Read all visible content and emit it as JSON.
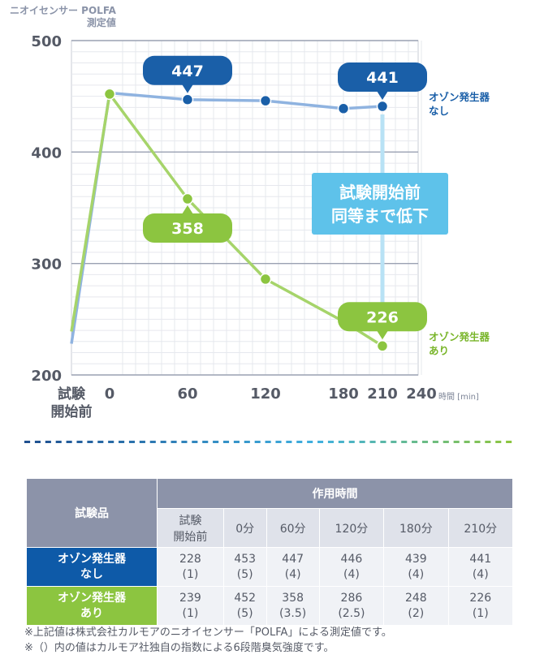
{
  "chart_data": {
    "type": "line",
    "ylabel": "ニオイセンサー POLFA",
    "ylabel_unit": "測定値",
    "xlabel": "時間",
    "xlabel_unit": "[min]",
    "x_categories": [
      "試験開始前",
      "0",
      "60",
      "120",
      "180",
      "210",
      "240"
    ],
    "x_ticks": [
      0,
      60,
      120,
      180,
      210,
      240
    ],
    "pre_label_lines": [
      "試験",
      "開始前"
    ],
    "ylim": [
      200,
      500
    ],
    "yticks": [
      200,
      300,
      400,
      500
    ],
    "grid": true,
    "series": [
      {
        "name": "オゾン発生器なし",
        "name_lines": [
          "オゾン発生器",
          "なし"
        ],
        "color": "#8fb3e0",
        "label_color": "#1a5fa8",
        "marker_color": "#1a5fa8",
        "points": [
          [
            "試験開始前",
            228
          ],
          [
            0,
            453
          ],
          [
            60,
            447
          ],
          [
            120,
            446
          ],
          [
            180,
            439
          ],
          [
            210,
            441
          ]
        ],
        "callouts": [
          {
            "x": 60,
            "value": "447"
          },
          {
            "x": 210,
            "value": "441"
          }
        ]
      },
      {
        "name": "オゾン発生器あり",
        "name_lines": [
          "オゾン発生器",
          "あり"
        ],
        "color": "#a6d46a",
        "label_color": "#79b52a",
        "marker_color": "#8cc540",
        "points": [
          [
            "試験開始前",
            239
          ],
          [
            0,
            452
          ],
          [
            60,
            358
          ],
          [
            120,
            286
          ],
          [
            180,
            248
          ],
          [
            210,
            226
          ]
        ],
        "callouts": [
          {
            "x": 60,
            "value": "358"
          },
          {
            "x": 210,
            "value": "226"
          }
        ]
      }
    ],
    "annotation": {
      "lines": [
        "試験開始前",
        "同等まで低下"
      ]
    }
  },
  "table": {
    "sample_header": "試験品",
    "time_header": "作用時間",
    "columns": [
      [
        "試験",
        "開始前"
      ],
      [
        "0分"
      ],
      [
        "60分"
      ],
      [
        "120分"
      ],
      [
        "180分"
      ],
      [
        "210分"
      ]
    ],
    "rows": [
      {
        "label": [
          "オゾン発生器",
          "なし"
        ],
        "style": "row-a",
        "cells": [
          [
            "228",
            "(1)"
          ],
          [
            "453",
            "(5)"
          ],
          [
            "447",
            "(4)"
          ],
          [
            "446",
            "(4)"
          ],
          [
            "439",
            "(4)"
          ],
          [
            "441",
            "(4)"
          ]
        ]
      },
      {
        "label": [
          "オゾン発生器",
          "あり"
        ],
        "style": "row-b",
        "cells": [
          [
            "239",
            "(1)"
          ],
          [
            "452",
            "(5)"
          ],
          [
            "358",
            "(3.5)"
          ],
          [
            "286",
            "(2.5)"
          ],
          [
            "248",
            "(2)"
          ],
          [
            "226",
            "(1)"
          ]
        ]
      }
    ]
  },
  "notes": [
    "※上記値は株式会社カルモアのニオイセンサー「POLFA」による測定値です。",
    "※（）内の値はカルモア社独自の指数による6段階臭気強度です。"
  ],
  "colors": {
    "divider_start": "#1f4f8f",
    "divider_end": "#8cc540"
  }
}
